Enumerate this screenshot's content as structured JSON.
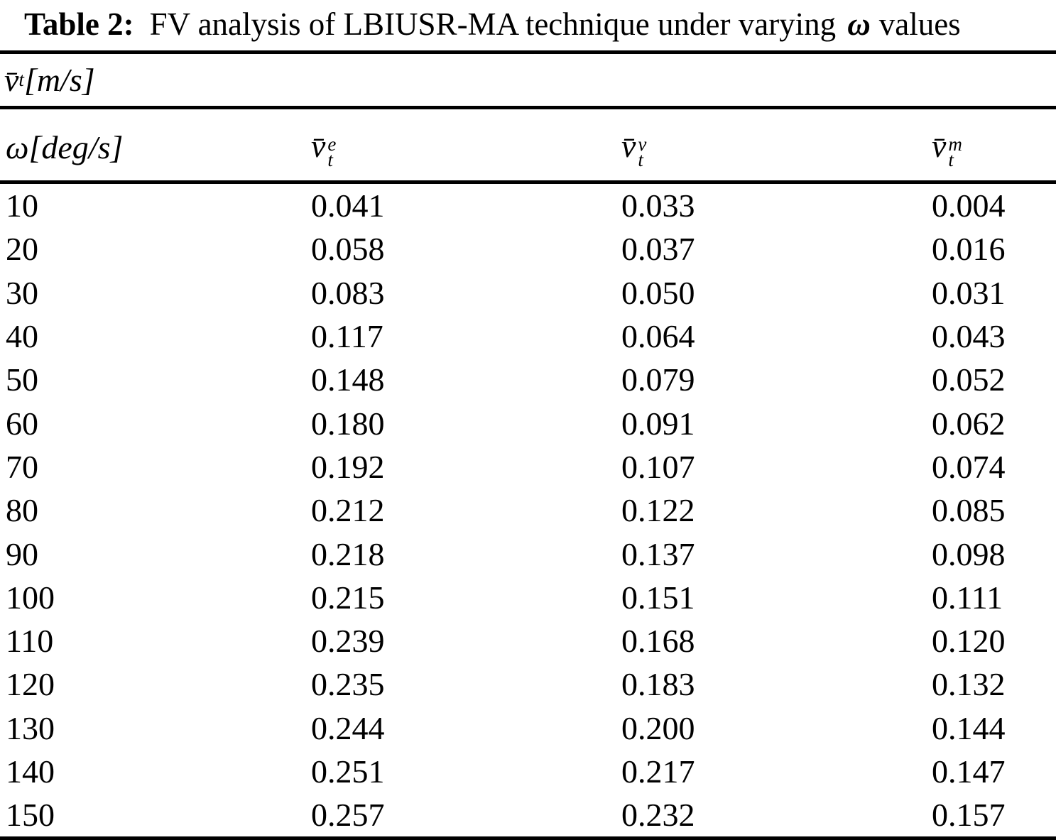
{
  "title": {
    "label": "Table 2:",
    "text_before_omega": "FV analysis of LBIUSR-MA technique under varying",
    "omega": "ω",
    "text_after_omega": "values"
  },
  "table": {
    "group_header": {
      "base": "v̄",
      "sub": "t",
      "unit": "[m/s]"
    },
    "columns": [
      {
        "base": "ω",
        "unit": "[deg/s]"
      },
      {
        "base": "v̄",
        "sub": "t",
        "sup": "e"
      },
      {
        "base": "v̄",
        "sub": "t",
        "sup": "v"
      },
      {
        "base": "v̄",
        "sub": "t",
        "sup": "m"
      }
    ],
    "rows": [
      {
        "omega": "10",
        "ve": "0.041",
        "vv": "0.033",
        "vm": "0.004"
      },
      {
        "omega": "20",
        "ve": "0.058",
        "vv": "0.037",
        "vm": "0.016"
      },
      {
        "omega": "30",
        "ve": "0.083",
        "vv": "0.050",
        "vm": "0.031"
      },
      {
        "omega": "40",
        "ve": "0.117",
        "vv": "0.064",
        "vm": "0.043"
      },
      {
        "omega": "50",
        "ve": "0.148",
        "vv": "0.079",
        "vm": "0.052"
      },
      {
        "omega": "60",
        "ve": "0.180",
        "vv": "0.091",
        "vm": "0.062"
      },
      {
        "omega": "70",
        "ve": "0.192",
        "vv": "0.107",
        "vm": "0.074"
      },
      {
        "omega": "80",
        "ve": "0.212",
        "vv": "0.122",
        "vm": "0.085"
      },
      {
        "omega": "90",
        "ve": "0.218",
        "vv": "0.137",
        "vm": "0.098"
      },
      {
        "omega": "100",
        "ve": "0.215",
        "vv": "0.151",
        "vm": "0.111"
      },
      {
        "omega": "110",
        "ve": "0.239",
        "vv": "0.168",
        "vm": "0.120"
      },
      {
        "omega": "120",
        "ve": "0.235",
        "vv": "0.183",
        "vm": "0.132"
      },
      {
        "omega": "130",
        "ve": "0.244",
        "vv": "0.200",
        "vm": "0.144"
      },
      {
        "omega": "140",
        "ve": "0.251",
        "vv": "0.217",
        "vm": "0.147"
      },
      {
        "omega": "150",
        "ve": "0.257",
        "vv": "0.232",
        "vm": "0.157"
      }
    ]
  },
  "chart_data": {
    "type": "table",
    "title": "Table 2: FV analysis of LBIUSR-MA technique under varying ω values",
    "row_header": "ω[deg/s]",
    "unit_header": "v̄ₜ[m/s]",
    "omega": [
      10,
      20,
      30,
      40,
      50,
      60,
      70,
      80,
      90,
      100,
      110,
      120,
      130,
      140,
      150
    ],
    "series": [
      {
        "name": "v̄ₜᵉ",
        "values": [
          0.041,
          0.058,
          0.083,
          0.117,
          0.148,
          0.18,
          0.192,
          0.212,
          0.218,
          0.215,
          0.239,
          0.235,
          0.244,
          0.251,
          0.257
        ]
      },
      {
        "name": "v̄ₜᵛ",
        "values": [
          0.033,
          0.037,
          0.05,
          0.064,
          0.079,
          0.091,
          0.107,
          0.122,
          0.137,
          0.151,
          0.168,
          0.183,
          0.2,
          0.217,
          0.232
        ]
      },
      {
        "name": "v̄ₜᵐ",
        "values": [
          0.004,
          0.016,
          0.031,
          0.043,
          0.052,
          0.062,
          0.074,
          0.085,
          0.098,
          0.111,
          0.12,
          0.132,
          0.144,
          0.147,
          0.157
        ]
      }
    ]
  }
}
